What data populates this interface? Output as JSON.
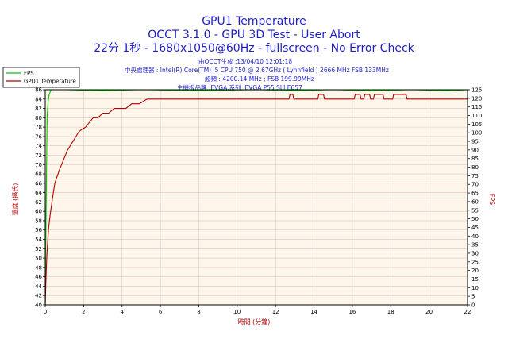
{
  "chart_data": {
    "type": "line",
    "title": "GPU1 Temperature",
    "subtitle_line1": "OCCT 3.1.0 - GPU 3D Test - User Abort",
    "subtitle_line2": "22分 1秒 - 1680x1050@60Hz - fullscreen - No Error Check",
    "info_lines": [
      "由OCCT生成 :13/04/10 12:01:18",
      "中央處理器 : Intel(R) Core(TM) i5 CPU 750 @ 2.67GHz ( Lynnfield ) 2666 MHz FSB 133MHz",
      "超頻 : 4200.14 MHz ; FSB 199.99MHz",
      "主機板品牌 :EVGA,系列 :EVGA P55 SLI E657"
    ],
    "xlabel": "時間 (分鐘)",
    "ylabel_left": "溫度 (攝氏)",
    "ylabel_right": "FPS",
    "xlim": [
      0,
      22
    ],
    "ylim_left": [
      40,
      86
    ],
    "ylim_right": [
      0,
      125
    ],
    "xticks": [
      0,
      2,
      4,
      6,
      8,
      10,
      12,
      14,
      16,
      18,
      20,
      22
    ],
    "yticks_left": [
      40,
      42,
      44,
      46,
      48,
      50,
      52,
      54,
      56,
      58,
      60,
      62,
      64,
      66,
      68,
      70,
      72,
      74,
      76,
      78,
      80,
      82,
      84,
      86
    ],
    "yticks_right": [
      0,
      5,
      10,
      15,
      20,
      25,
      30,
      35,
      40,
      45,
      50,
      55,
      60,
      65,
      70,
      75,
      80,
      85,
      90,
      95,
      100,
      105,
      110,
      115,
      120,
      125
    ],
    "grid": true,
    "legend_position": "top-left",
    "colors": {
      "background": "#fdf6ea",
      "grid": "#e4bfbf",
      "temperature": "#b40000",
      "fps": "#00c800",
      "title": "#1e1ec8",
      "axis_label": "#b40000"
    },
    "series": [
      {
        "name": "FPS",
        "axis": "right",
        "x": [
          0,
          0.05,
          0.1,
          0.15,
          0.2,
          0.3,
          1,
          3,
          5,
          8,
          11,
          13,
          15,
          17,
          19,
          21,
          22
        ],
        "values": [
          0,
          60,
          110,
          118,
          122,
          125,
          125,
          124.5,
          125,
          124.5,
          125,
          124.5,
          125,
          124.5,
          125,
          124.5,
          125
        ]
      },
      {
        "name": "GPU1 Temperature",
        "axis": "left",
        "x": [
          0,
          0.04,
          0.08,
          0.12,
          0.17,
          0.22,
          0.28,
          0.35,
          0.42,
          0.5,
          0.58,
          0.67,
          0.75,
          0.85,
          0.95,
          1.05,
          1.15,
          1.3,
          1.45,
          1.6,
          1.75,
          1.9,
          2.1,
          2.3,
          2.5,
          2.75,
          3.0,
          3.3,
          3.6,
          3.9,
          4.2,
          4.5,
          4.9,
          5.3,
          6,
          8,
          10,
          12,
          12.7,
          12.75,
          12.9,
          12.95,
          14.2,
          14.25,
          14.5,
          14.55,
          16.1,
          16.15,
          16.4,
          16.45,
          16.6,
          16.65,
          16.9,
          16.95,
          17.1,
          17.15,
          17.6,
          17.65,
          18.1,
          18.15,
          18.8,
          18.85,
          19.05,
          19.1,
          22
        ],
        "values": [
          40,
          46,
          50,
          53,
          56,
          58,
          60,
          62,
          64,
          66,
          67,
          68,
          69,
          70,
          71,
          72,
          73,
          74,
          75,
          76,
          77,
          77.5,
          78,
          79,
          80,
          80,
          81,
          81,
          82,
          82,
          82,
          83,
          83,
          84,
          84,
          84,
          84,
          84,
          84,
          85,
          85,
          84,
          84,
          85,
          85,
          84,
          84,
          85,
          85,
          84,
          84,
          85,
          85,
          84,
          84,
          85,
          85,
          84,
          84,
          85,
          85,
          84,
          84,
          84,
          84
        ]
      }
    ]
  }
}
